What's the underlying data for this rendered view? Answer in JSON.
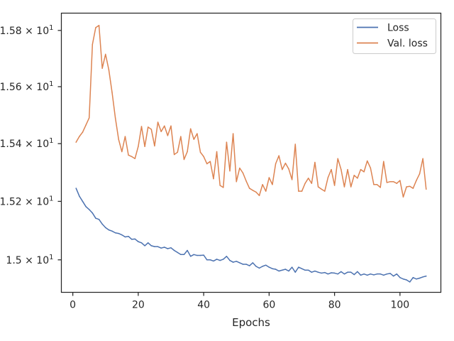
{
  "chart_data": {
    "type": "line",
    "xlabel": "Epochs",
    "ylabel": "",
    "xlim": [
      -3.5,
      112.5
    ],
    "ylim": [
      14.89,
      15.862
    ],
    "y_scale": "log",
    "grid": false,
    "legend_position": "top-right",
    "x_ticks": [
      {
        "value": 0,
        "label": "0"
      },
      {
        "value": 20,
        "label": "20"
      },
      {
        "value": 40,
        "label": "40"
      },
      {
        "value": 60,
        "label": "60"
      },
      {
        "value": 80,
        "label": "80"
      },
      {
        "value": 100,
        "label": "100"
      }
    ],
    "y_ticks": [
      {
        "value": 15.0,
        "base": "1.5 × 10",
        "exp": "1"
      },
      {
        "value": 15.2,
        "base": "1.52 × 10",
        "exp": "1"
      },
      {
        "value": 15.4,
        "base": "1.54 × 10",
        "exp": "1"
      },
      {
        "value": 15.6,
        "base": "1.56 × 10",
        "exp": "1"
      },
      {
        "value": 15.8,
        "base": "1.58 × 10",
        "exp": "1"
      }
    ],
    "series": [
      {
        "name": "Loss",
        "color": "#4c72b0",
        "x": [
          1,
          2,
          3,
          4,
          5,
          6,
          7,
          8,
          9,
          10,
          11,
          12,
          13,
          14,
          15,
          16,
          17,
          18,
          19,
          20,
          21,
          22,
          23,
          24,
          25,
          26,
          27,
          28,
          29,
          30,
          31,
          32,
          33,
          34,
          35,
          36,
          37,
          38,
          39,
          40,
          41,
          42,
          43,
          44,
          45,
          46,
          47,
          48,
          49,
          50,
          51,
          52,
          53,
          54,
          55,
          56,
          57,
          58,
          59,
          60,
          61,
          62,
          63,
          64,
          65,
          66,
          67,
          68,
          69,
          70,
          71,
          72,
          73,
          74,
          75,
          76,
          77,
          78,
          79,
          80,
          81,
          82,
          83,
          84,
          85,
          86,
          87,
          88,
          89,
          90,
          91,
          92,
          93,
          94,
          95,
          96,
          97,
          98,
          99,
          100,
          101,
          102,
          103,
          104,
          105,
          106,
          107,
          108
        ],
        "values": [
          15.245,
          15.218,
          15.2,
          15.182,
          15.172,
          15.16,
          15.142,
          15.138,
          15.122,
          15.11,
          15.102,
          15.098,
          15.092,
          15.09,
          15.085,
          15.078,
          15.08,
          15.07,
          15.071,
          15.062,
          15.058,
          15.048,
          15.058,
          15.048,
          15.045,
          15.045,
          15.04,
          15.043,
          15.038,
          15.041,
          15.032,
          15.025,
          15.018,
          15.018,
          15.032,
          15.012,
          15.018,
          15.015,
          15.015,
          15.016,
          15.0,
          15.0,
          14.996,
          15.002,
          14.998,
          15.002,
          15.012,
          14.998,
          14.992,
          14.995,
          14.99,
          14.985,
          14.985,
          14.98,
          14.99,
          14.978,
          14.972,
          14.978,
          14.982,
          14.975,
          14.97,
          14.968,
          14.962,
          14.965,
          14.968,
          14.962,
          14.975,
          14.958,
          14.975,
          14.97,
          14.965,
          14.965,
          14.958,
          14.962,
          14.958,
          14.955,
          14.957,
          14.952,
          14.956,
          14.955,
          14.952,
          14.96,
          14.952,
          14.958,
          14.958,
          14.95,
          14.96,
          14.948,
          14.952,
          14.948,
          14.952,
          14.949,
          14.952,
          14.952,
          14.948,
          14.952,
          14.954,
          14.945,
          14.952,
          14.94,
          14.935,
          14.932,
          14.925,
          14.94,
          14.935,
          14.938,
          14.942,
          14.945
        ]
      },
      {
        "name": "Val. loss",
        "color": "#dd8452",
        "x": [
          1,
          2,
          3,
          4,
          5,
          6,
          7,
          8,
          9,
          10,
          11,
          12,
          13,
          14,
          15,
          16,
          17,
          18,
          19,
          20,
          21,
          22,
          23,
          24,
          25,
          26,
          27,
          28,
          29,
          30,
          31,
          32,
          33,
          34,
          35,
          36,
          37,
          38,
          39,
          40,
          41,
          42,
          43,
          44,
          45,
          46,
          47,
          48,
          49,
          50,
          51,
          52,
          53,
          54,
          55,
          56,
          57,
          58,
          59,
          60,
          61,
          62,
          63,
          64,
          65,
          66,
          67,
          68,
          69,
          70,
          71,
          72,
          73,
          74,
          75,
          76,
          77,
          78,
          79,
          80,
          81,
          82,
          83,
          84,
          85,
          86,
          87,
          88,
          89,
          90,
          91,
          92,
          93,
          94,
          95,
          96,
          97,
          98,
          99,
          100,
          101,
          102,
          103,
          104,
          105,
          106,
          107,
          108
        ],
        "values": [
          15.405,
          15.425,
          15.44,
          15.465,
          15.49,
          15.75,
          15.81,
          15.818,
          15.665,
          15.715,
          15.66,
          15.58,
          15.49,
          15.415,
          15.372,
          15.425,
          15.36,
          15.355,
          15.348,
          15.39,
          15.46,
          15.39,
          15.458,
          15.45,
          15.392,
          15.475,
          15.442,
          15.462,
          15.428,
          15.462,
          15.362,
          15.37,
          15.425,
          15.345,
          15.372,
          15.452,
          15.415,
          15.435,
          15.37,
          15.355,
          15.33,
          15.338,
          15.278,
          15.372,
          15.255,
          15.248,
          15.405,
          15.305,
          15.435,
          15.268,
          15.315,
          15.298,
          15.27,
          15.245,
          15.238,
          15.232,
          15.22,
          15.258,
          15.235,
          15.282,
          15.258,
          15.33,
          15.358,
          15.31,
          15.332,
          15.312,
          15.275,
          15.398,
          15.235,
          15.235,
          15.262,
          15.28,
          15.262,
          15.335,
          15.25,
          15.242,
          15.235,
          15.282,
          15.31,
          15.255,
          15.348,
          15.31,
          15.25,
          15.31,
          15.25,
          15.29,
          15.28,
          15.31,
          15.302,
          15.34,
          15.315,
          15.258,
          15.258,
          15.248,
          15.338,
          15.265,
          15.268,
          15.268,
          15.262,
          15.272,
          15.215,
          15.25,
          15.252,
          15.245,
          15.272,
          15.295,
          15.348,
          15.242
        ]
      }
    ]
  }
}
